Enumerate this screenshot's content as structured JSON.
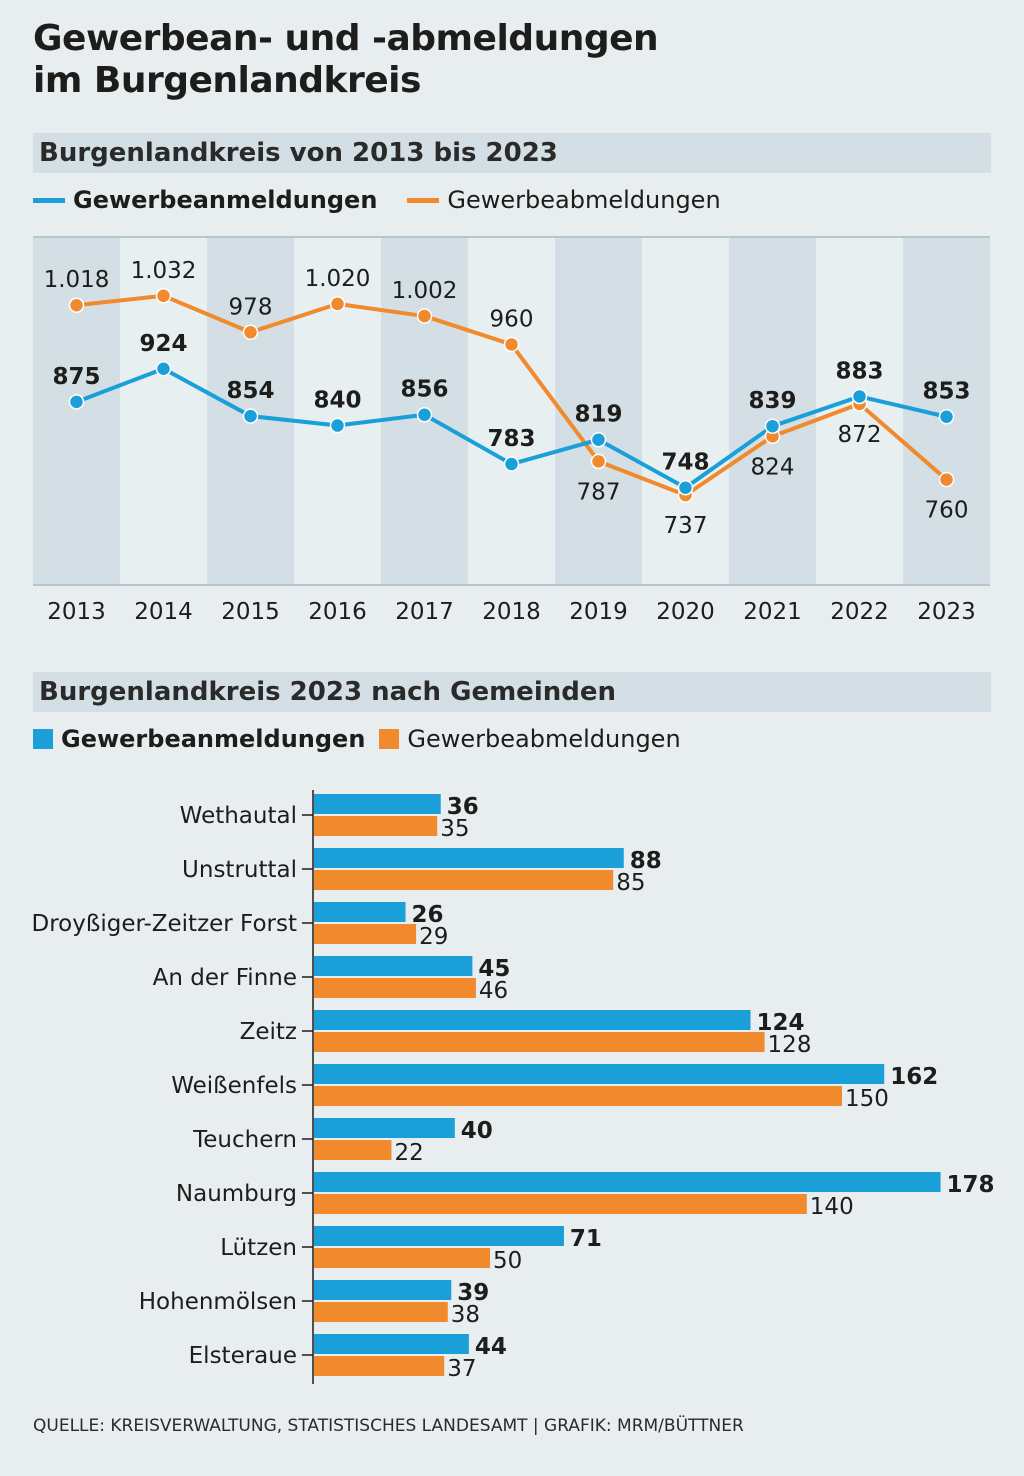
{
  "title_line1": "Gewerbean- und -abmeldungen",
  "title_line2": "im Burgenlandkreis",
  "colors": {
    "anmeldungen": "#1a9fd9",
    "abmeldungen": "#f08a2c",
    "background": "#e8eef0",
    "stripe": "#d3dfe4"
  },
  "source": "QUELLE: KREISVERWALTUNG, STATISTISCHES LANDESAMT | GRAFIK: MRM/BÜTTNER",
  "chart_data": [
    {
      "type": "line",
      "title": "Burgenlandkreis von 2013 bis 2023",
      "legend_placement": "top-left",
      "ylim": [
        604,
        1119
      ],
      "grid": false,
      "x": [
        "2013",
        "2014",
        "2015",
        "2016",
        "2017",
        "2018",
        "2019",
        "2020",
        "2021",
        "2022",
        "2023"
      ],
      "series": [
        {
          "name": "Gewerbeanmeldungen",
          "values": [
            875,
            924,
            854,
            840,
            856,
            783,
            819,
            748,
            839,
            883,
            853
          ],
          "labels": [
            "875",
            "924",
            "854",
            "840",
            "856",
            "783",
            "819",
            "748",
            "839",
            "883",
            "853"
          ]
        },
        {
          "name": "Gewerbeabmeldungen",
          "values": [
            1018,
            1032,
            978,
            1020,
            1002,
            960,
            787,
            737,
            824,
            872,
            760
          ],
          "labels": [
            "1.018",
            "1.032",
            "978",
            "1.020",
            "1.002",
            "960",
            "787",
            "737",
            "824",
            "872",
            "760"
          ]
        }
      ]
    },
    {
      "type": "bar",
      "orientation": "horizontal",
      "title": "Burgenlandkreis 2023 nach Gemeinden",
      "legend_placement": "top-left",
      "xlim": [
        0,
        180
      ],
      "categories": [
        "Wethautal",
        "Unstruttal",
        "Droyßiger-Zeitzer Forst",
        "An der Finne",
        "Zeitz",
        "Weißenfels",
        "Teuchern",
        "Naumburg",
        "Lützen",
        "Hohenmölsen",
        "Elsteraue"
      ],
      "series": [
        {
          "name": "Gewerbeanmeldungen",
          "values": [
            36,
            88,
            26,
            45,
            124,
            162,
            40,
            178,
            71,
            39,
            44
          ]
        },
        {
          "name": "Gewerbeabmeldungen",
          "values": [
            35,
            85,
            29,
            46,
            128,
            150,
            22,
            140,
            50,
            38,
            37
          ]
        }
      ]
    }
  ]
}
